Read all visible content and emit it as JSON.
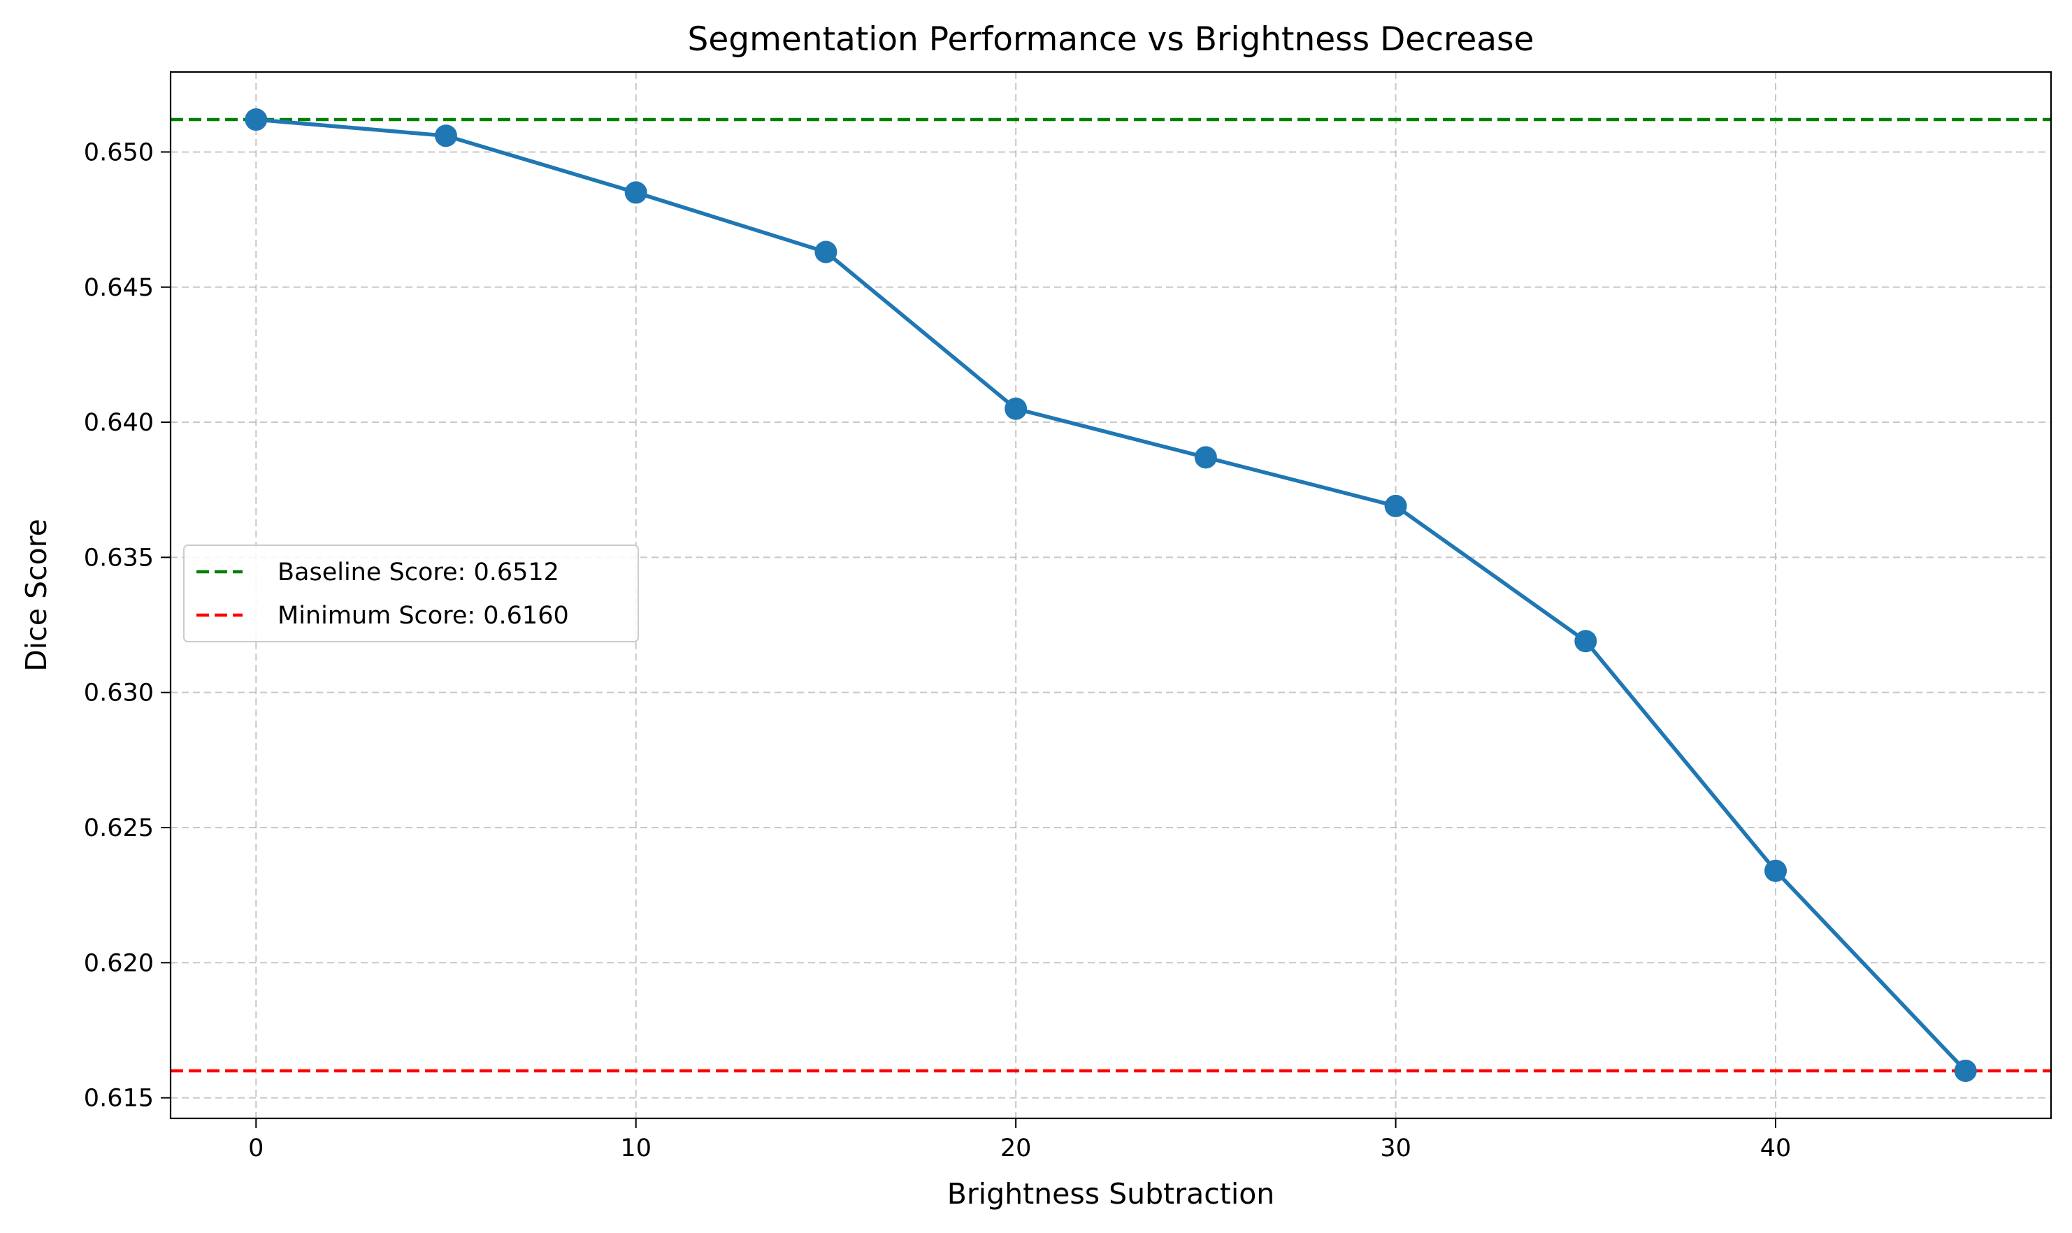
{
  "chart_data": {
    "type": "line",
    "title": "Segmentation Performance vs Brightness Decrease",
    "xlabel": "Brightness Subtraction",
    "ylabel": "Dice Score",
    "xlim": [
      -2.25,
      47.25
    ],
    "ylim": [
      0.61424,
      0.65296
    ],
    "xticks": [
      0,
      10,
      20,
      30,
      40
    ],
    "xtick_labels": [
      "0",
      "10",
      "20",
      "30",
      "40"
    ],
    "yticks": [
      0.615,
      0.62,
      0.625,
      0.63,
      0.635,
      0.64,
      0.645,
      0.65
    ],
    "ytick_labels": [
      "0.615",
      "0.620",
      "0.625",
      "0.630",
      "0.635",
      "0.640",
      "0.645",
      "0.650"
    ],
    "grid": true,
    "series": [
      {
        "x": [
          0,
          5,
          10,
          15,
          20,
          25,
          30,
          35,
          40,
          45
        ],
        "y": [
          0.6512,
          0.6506,
          0.6485,
          0.6463,
          0.6405,
          0.6387,
          0.6369,
          0.6319,
          0.6234,
          0.616
        ],
        "color": "#1f77b4",
        "marker": "circle"
      }
    ],
    "reference_lines": [
      {
        "name": "Baseline Score: 0.6512",
        "y": 0.6512,
        "color": "#008000",
        "style": "dashed"
      },
      {
        "name": "Minimum Score: 0.6160",
        "y": 0.616,
        "color": "#ff0000",
        "style": "dashed"
      }
    ],
    "legend": {
      "position": "center-left",
      "entries": [
        "Baseline Score: 0.6512",
        "Minimum Score: 0.6160"
      ]
    }
  }
}
